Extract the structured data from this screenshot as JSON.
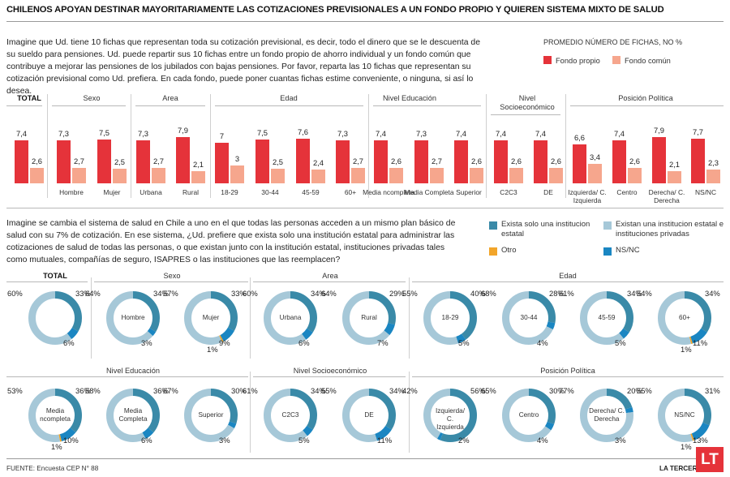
{
  "headline": "CHILENOS APOYAN DESTINAR MAYORITARIAMENTE LAS COTIZACIONES PREVISIONALES A UN FONDO PROPIO Y QUIEREN SISTEMA MIXTO DE SALUD",
  "question1": "Imagine que Ud. tiene 10 fichas que representan toda su cotización previsional, es decir, todo el dinero que se le descuenta de su sueldo para pensiones.  Ud. puede repartir sus 10 fichas entre un fondo propio de ahorro individual y un fondo común que contribuye a mejorar las pensiones de los jubilados con bajas pensiones. Por favor, reparta las 10 fichas que representan su cotización previsional como Ud. prefiera. En cada fondo, puede poner cuantas fichas estime conveniente, o ninguna, si así lo desea.",
  "legend1": {
    "title": "PROMEDIO NÚMERO DE FICHAS, NO %",
    "items": [
      {
        "label": "Fondo propio",
        "color": "#e5333a"
      },
      {
        "label": "Fondo común",
        "color": "#f6a68d"
      }
    ]
  },
  "question2": "Imagine se cambia el sistema de salud en Chile a uno en el que todas las personas acceden a un mismo plan básico de salud con su 7% de cotización. En ese sistema, ¿Ud. prefiere que exista solo una institución estatal para administrar las cotizaciones de salud de todas las personas, o que existan junto con la institución estatal, instituciones privadas tales como mutuales, compañías de seguro, ISAPRES o las instituciones que las reemplacen?",
  "legend2": {
    "items": [
      {
        "label": "Exista solo una institucion estatal",
        "color": "#3a8aa8"
      },
      {
        "label": "Existan una institucion estatal e instituciones privadas",
        "color": "#a6c8d8"
      },
      {
        "label": "Otro",
        "color": "#f2a52a"
      },
      {
        "label": "NS/NC",
        "color": "#1a86c2"
      }
    ]
  },
  "chart_data": [
    {
      "type": "bar",
      "series": [
        {
          "name": "Fondo propio",
          "color": "#e5333a"
        },
        {
          "name": "Fondo común",
          "color": "#f6a68d"
        }
      ],
      "groups": [
        {
          "name": "TOTAL",
          "bars": [
            {
              "category": "",
              "values": [
                "7,4",
                "2,6"
              ]
            }
          ]
        },
        {
          "name": "Sexo",
          "bars": [
            {
              "category": "Hombre",
              "values": [
                "7,3",
                "2,7"
              ]
            },
            {
              "category": "Mujer",
              "values": [
                "7,5",
                "2,5"
              ]
            }
          ]
        },
        {
          "name": "Area",
          "bars": [
            {
              "category": "Urbana",
              "values": [
                "7,3",
                "2,7"
              ]
            },
            {
              "category": "Rural",
              "values": [
                "7,9",
                "2,1"
              ]
            }
          ]
        },
        {
          "name": "Edad",
          "bars": [
            {
              "category": "18-29",
              "values": [
                "7",
                "3"
              ]
            },
            {
              "category": "30-44",
              "values": [
                "7,5",
                "2,5"
              ]
            },
            {
              "category": "45-59",
              "values": [
                "7,6",
                "2,4"
              ]
            },
            {
              "category": "60+",
              "values": [
                "7,3",
                "2,7"
              ]
            }
          ]
        },
        {
          "name": "Nivel Educación",
          "bars": [
            {
              "category": "Media ncompleta",
              "values": [
                "7,4",
                "2,6"
              ]
            },
            {
              "category": "Media Completa",
              "values": [
                "7,3",
                "2,7"
              ]
            },
            {
              "category": "Superior",
              "values": [
                "7,4",
                "2,6"
              ]
            }
          ]
        },
        {
          "name": "Nivel Socioeconómico",
          "bars": [
            {
              "category": "C2C3",
              "values": [
                "7,4",
                "2,6"
              ]
            },
            {
              "category": "DE",
              "values": [
                "7,4",
                "2,6"
              ]
            }
          ]
        },
        {
          "name": "Posición Política",
          "bars": [
            {
              "category": "Izquierda/ C. Izquierda",
              "values": [
                "6,6",
                "3,4"
              ]
            },
            {
              "category": "Centro",
              "values": [
                "7,4",
                "2,6"
              ]
            },
            {
              "category": "Derecha/ C. Derecha",
              "values": [
                "7,9",
                "2,1"
              ]
            },
            {
              "category": "NS/NC",
              "values": [
                "7,7",
                "2,3"
              ]
            }
          ]
        }
      ]
    },
    {
      "type": "pie",
      "series_order": [
        "Exista solo una institucion estatal",
        "NS/NC",
        "Otro",
        "Existan una institucion estatal e instituciones privadas"
      ],
      "group_labels": [
        "TOTAL",
        "Sexo",
        "Area",
        "Edad",
        "Nivel Educación",
        "Nivel Socioeconómico",
        "Posición Política"
      ],
      "donuts": [
        {
          "name": "",
          "values": [
            33,
            6,
            0,
            60
          ],
          "labels": [
            "33%",
            "6%",
            "",
            "60%"
          ]
        },
        {
          "name": "Hombre",
          "values": [
            34,
            3,
            0,
            64
          ],
          "labels": [
            "34%",
            "3%",
            "",
            "64%"
          ]
        },
        {
          "name": "Mujer",
          "values": [
            33,
            9,
            1,
            57
          ],
          "labels": [
            "33%",
            "9%",
            "1%",
            "57%"
          ]
        },
        {
          "name": "Urbana",
          "values": [
            34,
            6,
            0,
            60
          ],
          "labels": [
            "34%",
            "6%",
            "",
            "60%"
          ]
        },
        {
          "name": "Rural",
          "values": [
            29,
            7,
            0,
            64
          ],
          "labels": [
            "29%",
            "7%",
            "",
            "64%"
          ]
        },
        {
          "name": "18-29",
          "values": [
            40,
            5,
            0,
            55
          ],
          "labels": [
            "40%",
            "5%",
            "",
            "55%"
          ]
        },
        {
          "name": "30-44",
          "values": [
            28,
            4,
            0,
            68
          ],
          "labels": [
            "28%",
            "4%",
            "",
            "68%"
          ]
        },
        {
          "name": "45-59",
          "values": [
            34,
            5,
            0,
            61
          ],
          "labels": [
            "34%",
            "5%",
            "",
            "61%"
          ]
        },
        {
          "name": "60+",
          "values": [
            34,
            11,
            1,
            54
          ],
          "labels": [
            "34%",
            "11%",
            "1%",
            "54%"
          ]
        },
        {
          "name": "Media ncompleta",
          "values": [
            36,
            10,
            1,
            53
          ],
          "labels": [
            "36%",
            "10%",
            "1%",
            "53%"
          ]
        },
        {
          "name": "Media Completa",
          "values": [
            36,
            6,
            0,
            58
          ],
          "labels": [
            "36%",
            "6%",
            "",
            "58%"
          ]
        },
        {
          "name": "Superior",
          "values": [
            30,
            3,
            0,
            67
          ],
          "labels": [
            "30%",
            "3%",
            "",
            "67%"
          ]
        },
        {
          "name": "C2C3",
          "values": [
            34,
            5,
            0,
            61
          ],
          "labels": [
            "34%",
            "5%",
            "",
            "61%"
          ]
        },
        {
          "name": "DE",
          "values": [
            34,
            11,
            0,
            55
          ],
          "labels": [
            "34%",
            "11%",
            "",
            "55%"
          ]
        },
        {
          "name": "Izquierda/ C. Izquierda",
          "values": [
            56,
            2,
            0,
            42
          ],
          "labels": [
            "56%",
            "2%",
            "",
            "42%"
          ]
        },
        {
          "name": "Centro",
          "values": [
            30,
            4,
            0,
            65
          ],
          "labels": [
            "30%",
            "4%",
            "",
            "65%"
          ]
        },
        {
          "name": "Derecha/ C. Derecha",
          "values": [
            20,
            3,
            0,
            77
          ],
          "labels": [
            "20%",
            "3%",
            "",
            "77%"
          ]
        },
        {
          "name": "NS/NC",
          "values": [
            31,
            13,
            1,
            55
          ],
          "labels": [
            "31%",
            "13%",
            "1%",
            "55%"
          ]
        }
      ]
    }
  ],
  "source": "FUENTE: Encuesta CEP N° 88",
  "brand": "LA TERCERA",
  "logo": "LT"
}
